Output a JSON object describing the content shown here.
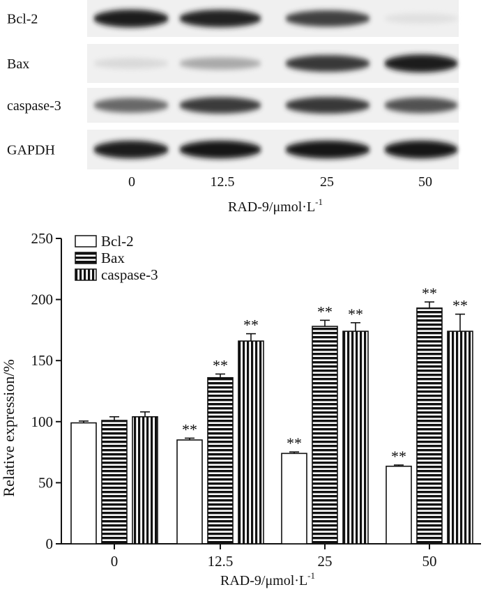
{
  "blot": {
    "rows": [
      {
        "label": "Bcl-2",
        "intensities": [
          0.95,
          0.92,
          0.78,
          0.05
        ]
      },
      {
        "label": "Bax",
        "intensities": [
          0.08,
          0.3,
          0.82,
          0.95
        ]
      },
      {
        "label": "caspase-3",
        "intensities": [
          0.6,
          0.8,
          0.82,
          0.7
        ]
      },
      {
        "label": "GAPDH",
        "intensities": [
          0.95,
          0.97,
          0.97,
          0.97
        ]
      }
    ],
    "lanes": [
      "0",
      "12.5",
      "25",
      "50"
    ],
    "xlabel_main": "RAD-9/μmol·L",
    "xlabel_sup": "-1"
  },
  "chart_data": {
    "type": "bar",
    "categories": [
      "0",
      "12.5",
      "25",
      "50"
    ],
    "series": [
      {
        "name": "Bcl-2",
        "pattern": "open",
        "values": [
          99,
          85,
          74,
          63.5
        ],
        "errors": [
          1.5,
          1.5,
          1.2,
          1.0
        ],
        "annotations": [
          "",
          "**",
          "**",
          "**"
        ]
      },
      {
        "name": "Bax",
        "pattern": "horizontal",
        "values": [
          101,
          136,
          178,
          193
        ],
        "errors": [
          3,
          3,
          5,
          5
        ],
        "annotations": [
          "",
          "**",
          "**",
          "**"
        ]
      },
      {
        "name": "caspase-3",
        "pattern": "vertical",
        "values": [
          104,
          166,
          174,
          174
        ],
        "errors": [
          4,
          6,
          7,
          14
        ],
        "annotations": [
          "",
          "**",
          "**",
          "**"
        ]
      }
    ],
    "ylabel": "Relative expression/%",
    "xlabel_main": "RAD-9/μmol·L",
    "xlabel_sup": "-1",
    "ylim": [
      0,
      250
    ],
    "yticks": [
      0,
      50,
      100,
      150,
      200,
      250
    ],
    "legend_position": "top-left",
    "grid": false
  }
}
